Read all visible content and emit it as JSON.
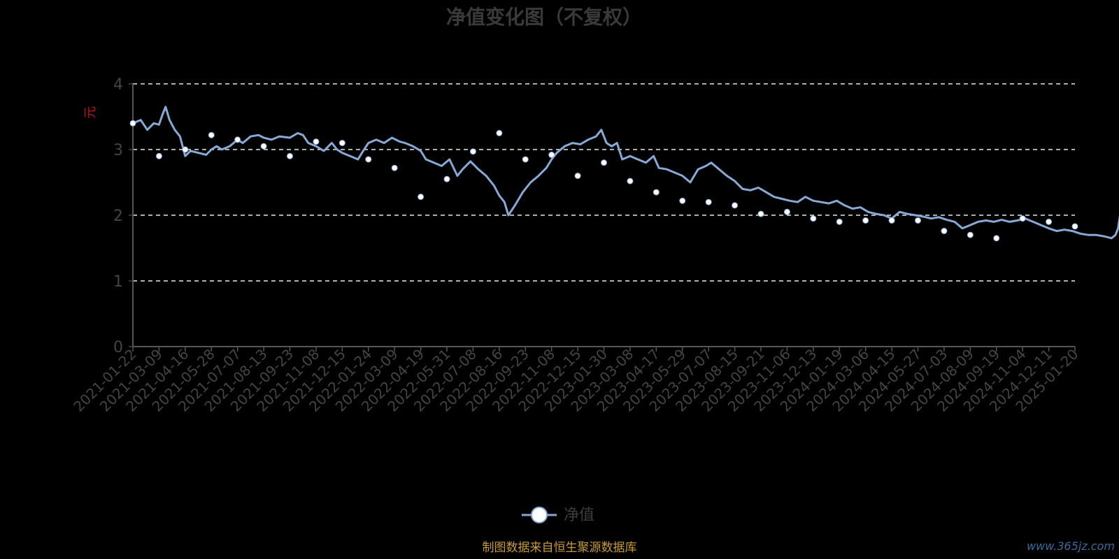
{
  "chart_data": {
    "type": "line",
    "title": "净值变化图（不复权）",
    "ylabel": "元",
    "ylim": [
      0,
      4
    ],
    "yticks": [
      0,
      1,
      2,
      3,
      4
    ],
    "grid": true,
    "legend_position": "bottom-center",
    "source_note": "制图数据来自恒生聚源数据库",
    "watermark": "www.365jz.com",
    "x_tick_labels": [
      "2021-01-22",
      "2021-03-09",
      "2021-04-16",
      "2021-05-28",
      "2021-07-07",
      "2021-08-13",
      "2021-09-23",
      "2021-11-08",
      "2021-12-15",
      "2022-01-24",
      "2022-03-09",
      "2022-04-19",
      "2022-05-31",
      "2022-07-08",
      "2022-08-16",
      "2022-09-23",
      "2022-11-08",
      "2022-12-15",
      "2023-01-30",
      "2023-03-08",
      "2023-04-17",
      "2023-05-29",
      "2023-07-07",
      "2023-08-15",
      "2023-09-21",
      "2023-11-06",
      "2023-12-13",
      "2024-01-19",
      "2024-03-06",
      "2024-04-15",
      "2024-05-27",
      "2024-07-03",
      "2024-08-09",
      "2024-09-19",
      "2024-11-04",
      "2024-12-11",
      "2025-01-20"
    ],
    "series": [
      {
        "name": "净值",
        "color": "#86a9d6",
        "marker_color": "#ffffff",
        "points": [
          [
            0,
            3.4
          ],
          [
            0.3,
            3.45
          ],
          [
            0.55,
            3.3
          ],
          [
            0.8,
            3.4
          ],
          [
            1.0,
            3.38
          ],
          [
            1.15,
            3.55
          ],
          [
            1.25,
            3.65
          ],
          [
            1.4,
            3.45
          ],
          [
            1.6,
            3.3
          ],
          [
            1.8,
            3.2
          ],
          [
            2.0,
            2.9
          ],
          [
            2.2,
            2.98
          ],
          [
            2.5,
            2.95
          ],
          [
            2.8,
            2.92
          ],
          [
            3.0,
            3.0
          ],
          [
            3.2,
            3.05
          ],
          [
            3.4,
            3.0
          ],
          [
            3.7,
            3.05
          ],
          [
            4.0,
            3.15
          ],
          [
            4.2,
            3.1
          ],
          [
            4.5,
            3.2
          ],
          [
            4.8,
            3.22
          ],
          [
            5.0,
            3.18
          ],
          [
            5.3,
            3.15
          ],
          [
            5.6,
            3.2
          ],
          [
            6.0,
            3.18
          ],
          [
            6.3,
            3.25
          ],
          [
            6.5,
            3.22
          ],
          [
            6.7,
            3.1
          ],
          [
            7.0,
            3.05
          ],
          [
            7.3,
            2.98
          ],
          [
            7.6,
            3.1
          ],
          [
            7.8,
            3.0
          ],
          [
            8.0,
            2.95
          ],
          [
            8.3,
            2.9
          ],
          [
            8.6,
            2.85
          ],
          [
            8.8,
            2.98
          ],
          [
            9.0,
            3.1
          ],
          [
            9.3,
            3.15
          ],
          [
            9.6,
            3.1
          ],
          [
            9.9,
            3.18
          ],
          [
            10.2,
            3.12
          ],
          [
            10.4,
            3.1
          ],
          [
            10.7,
            3.05
          ],
          [
            11.0,
            2.98
          ],
          [
            11.2,
            2.85
          ],
          [
            11.5,
            2.8
          ],
          [
            11.8,
            2.75
          ],
          [
            12.1,
            2.85
          ],
          [
            12.4,
            2.6
          ],
          [
            12.6,
            2.7
          ],
          [
            12.9,
            2.82
          ],
          [
            13.2,
            2.7
          ],
          [
            13.5,
            2.6
          ],
          [
            13.8,
            2.45
          ],
          [
            14.0,
            2.3
          ],
          [
            14.2,
            2.2
          ],
          [
            14.35,
            2.0
          ],
          [
            14.6,
            2.15
          ],
          [
            14.9,
            2.35
          ],
          [
            15.2,
            2.5
          ],
          [
            15.5,
            2.6
          ],
          [
            15.8,
            2.72
          ],
          [
            16.0,
            2.85
          ],
          [
            16.2,
            2.95
          ],
          [
            16.5,
            3.05
          ],
          [
            16.8,
            3.1
          ],
          [
            17.1,
            3.08
          ],
          [
            17.4,
            3.15
          ],
          [
            17.7,
            3.2
          ],
          [
            17.9,
            3.3
          ],
          [
            18.1,
            3.1
          ],
          [
            18.3,
            3.05
          ],
          [
            18.5,
            3.1
          ],
          [
            18.7,
            2.85
          ],
          [
            19.0,
            2.9
          ],
          [
            19.3,
            2.85
          ],
          [
            19.6,
            2.8
          ],
          [
            19.9,
            2.9
          ],
          [
            20.1,
            2.72
          ],
          [
            20.4,
            2.7
          ],
          [
            20.7,
            2.65
          ],
          [
            21.0,
            2.6
          ],
          [
            21.3,
            2.5
          ],
          [
            21.6,
            2.7
          ],
          [
            21.9,
            2.75
          ],
          [
            22.1,
            2.8
          ],
          [
            22.4,
            2.7
          ],
          [
            22.7,
            2.6
          ],
          [
            23.0,
            2.52
          ],
          [
            23.3,
            2.4
          ],
          [
            23.6,
            2.38
          ],
          [
            23.9,
            2.42
          ],
          [
            24.2,
            2.35
          ],
          [
            24.5,
            2.28
          ],
          [
            24.8,
            2.25
          ],
          [
            25.1,
            2.22
          ],
          [
            25.4,
            2.2
          ],
          [
            25.7,
            2.28
          ],
          [
            26.0,
            2.22
          ],
          [
            26.3,
            2.2
          ],
          [
            26.6,
            2.18
          ],
          [
            26.9,
            2.22
          ],
          [
            27.2,
            2.15
          ],
          [
            27.5,
            2.1
          ],
          [
            27.8,
            2.12
          ],
          [
            28.1,
            2.05
          ],
          [
            28.4,
            2.02
          ],
          [
            28.7,
            2.0
          ],
          [
            29.0,
            1.95
          ],
          [
            29.3,
            2.05
          ],
          [
            29.6,
            2.02
          ],
          [
            29.9,
            2.0
          ],
          [
            30.2,
            1.98
          ],
          [
            30.5,
            1.95
          ],
          [
            30.8,
            1.97
          ],
          [
            31.1,
            1.93
          ],
          [
            31.4,
            1.9
          ],
          [
            31.7,
            1.8
          ],
          [
            32.0,
            1.85
          ],
          [
            32.3,
            1.9
          ],
          [
            32.6,
            1.92
          ],
          [
            32.9,
            1.9
          ],
          [
            33.2,
            1.93
          ],
          [
            33.5,
            1.9
          ],
          [
            33.8,
            1.92
          ],
          [
            34.1,
            1.95
          ],
          [
            34.4,
            1.9
          ],
          [
            34.7,
            1.85
          ],
          [
            35.0,
            1.8
          ],
          [
            35.3,
            1.76
          ],
          [
            35.6,
            1.78
          ],
          [
            35.9,
            1.76
          ],
          [
            36.2,
            1.72
          ],
          [
            36.5,
            1.7
          ],
          [
            36.8,
            1.7
          ],
          [
            37.1,
            1.68
          ],
          [
            37.4,
            1.65
          ],
          [
            37.55,
            1.7
          ],
          [
            37.65,
            1.8
          ],
          [
            37.75,
            2.08
          ],
          [
            37.9,
            1.9
          ],
          [
            38.1,
            1.85
          ],
          [
            38.3,
            1.95
          ],
          [
            38.5,
            1.98
          ],
          [
            38.7,
            1.93
          ],
          [
            38.9,
            2.05
          ],
          [
            39.1,
            1.95
          ],
          [
            39.3,
            1.9
          ],
          [
            39.6,
            1.88
          ],
          [
            39.9,
            1.9
          ],
          [
            40.2,
            1.88
          ],
          [
            40.5,
            1.78
          ],
          [
            40.7,
            1.8
          ],
          [
            41.0,
            1.83
          ]
        ],
        "markers": [
          [
            0,
            3.4
          ],
          [
            1.0,
            2.9
          ],
          [
            2.0,
            3.0
          ],
          [
            3.0,
            3.22
          ],
          [
            4.0,
            3.15
          ],
          [
            5.0,
            3.05
          ],
          [
            6.0,
            2.9
          ],
          [
            7.0,
            3.12
          ],
          [
            8.0,
            3.1
          ],
          [
            9.0,
            2.85
          ],
          [
            10.0,
            2.72
          ],
          [
            11.0,
            2.28
          ],
          [
            12.0,
            2.55
          ],
          [
            13.0,
            2.97
          ],
          [
            14.0,
            3.25
          ],
          [
            15.0,
            2.85
          ],
          [
            16.0,
            2.92
          ],
          [
            17.0,
            2.6
          ],
          [
            18.0,
            2.8
          ],
          [
            19.0,
            2.52
          ],
          [
            20.0,
            2.35
          ],
          [
            21.0,
            2.22
          ],
          [
            22.0,
            2.2
          ],
          [
            23.0,
            2.15
          ],
          [
            24.0,
            2.02
          ],
          [
            25.0,
            2.05
          ],
          [
            26.0,
            1.95
          ],
          [
            27.0,
            1.9
          ],
          [
            28.0,
            1.92
          ],
          [
            29.0,
            1.92
          ],
          [
            30.0,
            1.92
          ],
          [
            31.0,
            1.76
          ],
          [
            32.0,
            1.7
          ],
          [
            33.0,
            1.65
          ],
          [
            34.0,
            1.95
          ],
          [
            35.0,
            1.9
          ],
          [
            36.0,
            1.83
          ]
        ]
      }
    ]
  }
}
